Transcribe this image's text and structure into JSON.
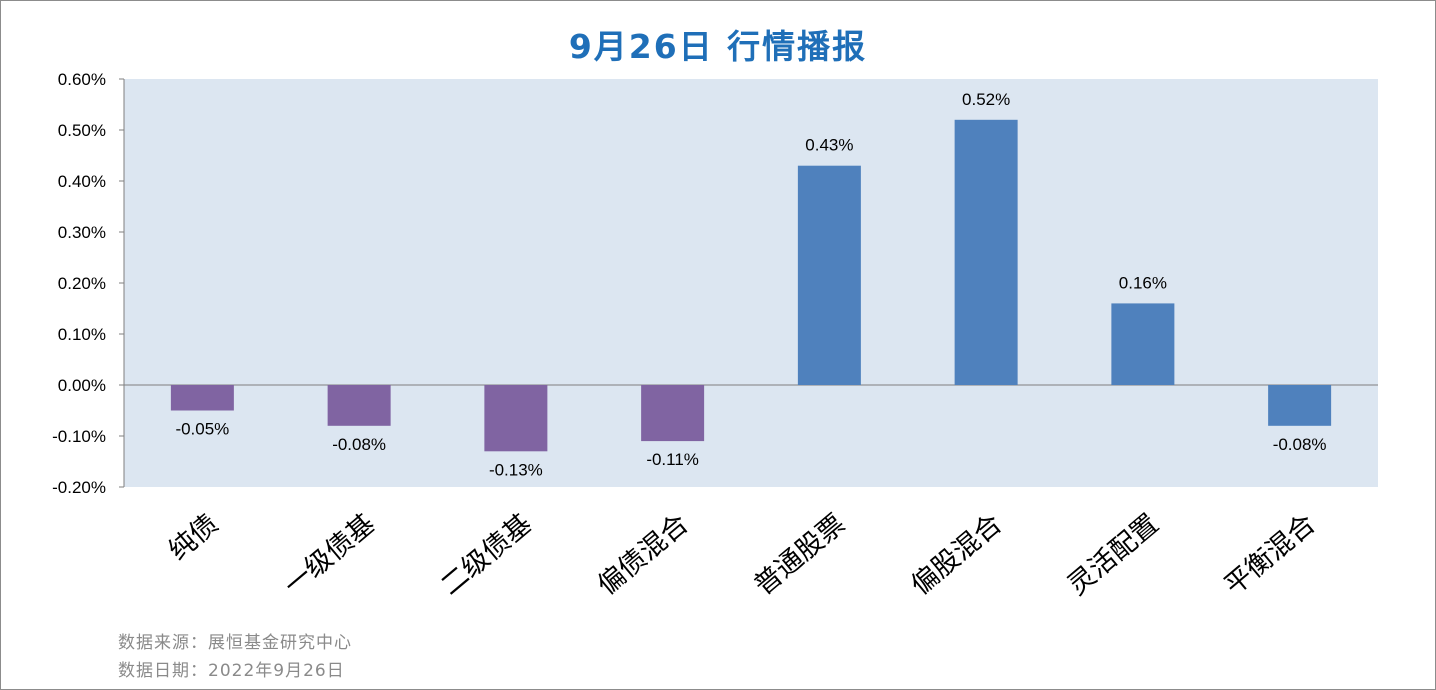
{
  "title": "9月26日  行情播报",
  "footer": {
    "source": "数据来源：展恒基金研究中心",
    "date": "数据日期：2022年9月26日"
  },
  "colors": {
    "title": "#1f6fb8",
    "plot_bg": "#dce6f1",
    "negative_bond": "#8064a2",
    "equity": "#4f81bd",
    "axis": "#7f7f7f"
  },
  "chart_data": {
    "type": "bar",
    "categories": [
      "纯债",
      "一级债基",
      "二级债基",
      "偏债混合",
      "普通股票",
      "偏股混合",
      "灵活配置",
      "平衡混合"
    ],
    "values": [
      -0.0005,
      -0.0008,
      -0.0013,
      -0.0011,
      0.0043,
      0.0052,
      0.0016,
      -0.0008
    ],
    "data_labels": [
      "-0.05%",
      "-0.08%",
      "-0.13%",
      "-0.11%",
      "0.43%",
      "0.52%",
      "0.16%",
      "-0.08%"
    ],
    "bar_colors": [
      "#8064a2",
      "#8064a2",
      "#8064a2",
      "#8064a2",
      "#4f81bd",
      "#4f81bd",
      "#4f81bd",
      "#4f81bd"
    ],
    "ylim": [
      -0.002,
      0.006
    ],
    "yticks": [
      0.006,
      0.005,
      0.004,
      0.003,
      0.002,
      0.001,
      0.0,
      -0.001,
      -0.002
    ],
    "ytick_labels": [
      "0.60%",
      "0.50%",
      "0.40%",
      "0.30%",
      "0.20%",
      "0.10%",
      "0.00%",
      "-0.10%",
      "-0.20%"
    ],
    "title": "9月26日  行情播报",
    "xlabel": "",
    "ylabel": "",
    "grid": false,
    "legend": "none"
  }
}
